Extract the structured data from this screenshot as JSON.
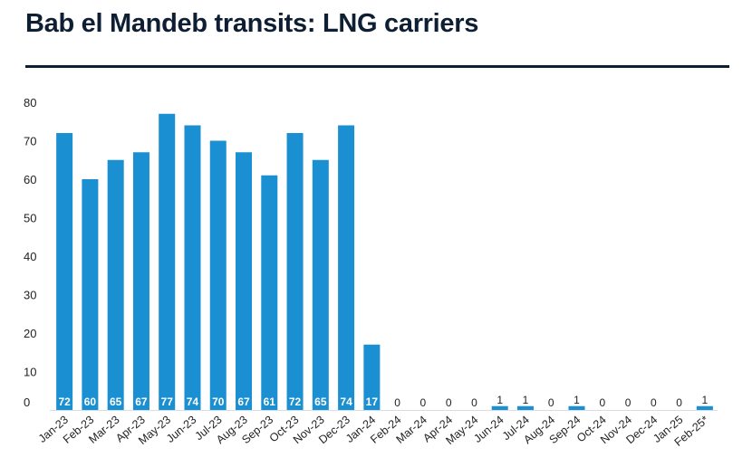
{
  "chart_data": {
    "type": "bar",
    "title": "Bab el Mandeb transits: LNG carriers",
    "xlabel": "",
    "ylabel": "",
    "ylim": [
      0,
      80
    ],
    "yticks": [
      0,
      10,
      20,
      30,
      40,
      50,
      60,
      70,
      80
    ],
    "grid": false,
    "bar_color": "#1a8fd1",
    "categories": [
      "Jan-23",
      "Feb-23",
      "Mar-23",
      "Apr-23",
      "May-23",
      "Jun-23",
      "Jul-23",
      "Aug-23",
      "Sep-23",
      "Oct-23",
      "Nov-23",
      "Dec-23",
      "Jan-24",
      "Feb-24",
      "Mar-24",
      "Apr-24",
      "May-24",
      "Jun-24",
      "Jul-24",
      "Aug-24",
      "Sep-24",
      "Oct-24",
      "Nov-24",
      "Dec-24",
      "Jan-25",
      "Feb-25*"
    ],
    "values": [
      72,
      60,
      65,
      67,
      77,
      74,
      70,
      67,
      61,
      72,
      65,
      74,
      17,
      0,
      0,
      0,
      0,
      1,
      1,
      0,
      1,
      0,
      0,
      0,
      0,
      1
    ]
  }
}
